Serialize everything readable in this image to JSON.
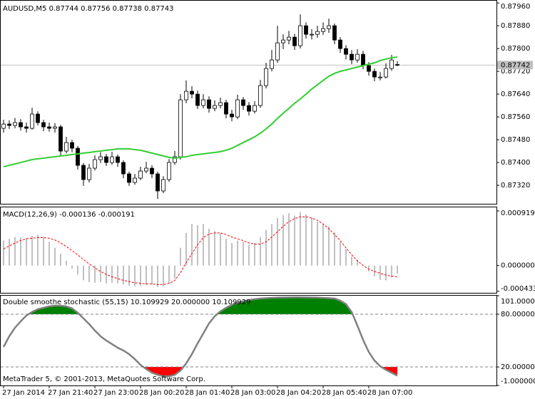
{
  "chart_data": [
    {
      "type": "candlestick",
      "title": "AUDUSD,M5  0.87744 0.87756 0.87738 0.87743",
      "categories": [
        "27 Jan 2014",
        null,
        null,
        null,
        null,
        null,
        null,
        null,
        "27 Jan 21:40",
        null,
        null,
        null,
        null,
        null,
        null,
        null,
        "27 Jan 23:00",
        null,
        null,
        null,
        null,
        null,
        null,
        null,
        "28 Jan 00:20",
        null,
        null,
        null,
        null,
        null,
        null,
        null,
        "28 Jan 01:40",
        null,
        null,
        null,
        null,
        null,
        null,
        null,
        "28 Jan 03:00",
        null,
        null,
        null,
        null,
        null,
        null,
        null,
        "28 Jan 04:20",
        null,
        null,
        null,
        null,
        null,
        null,
        null,
        "28 Jan 05:40",
        null,
        null,
        null,
        null,
        null,
        null,
        null,
        "28 Jan 07:00",
        null,
        null,
        null,
        null,
        null
      ],
      "open": [
        0.8752,
        0.87535,
        0.8753,
        0.8754,
        0.87525,
        0.8752,
        0.8757,
        0.8754,
        0.87525,
        0.8752,
        0.87525,
        0.8744,
        0.8747,
        0.8745,
        0.8739,
        0.8734,
        0.8738,
        0.8741,
        0.8742,
        0.874,
        0.8742,
        0.874,
        0.8736,
        0.8733,
        0.87345,
        0.8737,
        0.8738,
        0.8736,
        0.873,
        0.8734,
        0.874,
        0.8742,
        0.8762,
        0.8765,
        0.8764,
        0.876,
        0.8762,
        0.8759,
        0.876,
        0.8761,
        0.8757,
        0.8756,
        0.8762,
        0.876,
        0.8758,
        0.876,
        0.8767,
        0.8773,
        0.8776,
        0.8782,
        0.8783,
        0.8784,
        0.8781,
        0.8788,
        0.8785,
        0.8785,
        0.8786,
        0.8787,
        0.8788,
        0.8783,
        0.878,
        0.8778,
        0.8776,
        0.8778,
        0.8774,
        0.8772,
        0.877,
        0.877,
        0.8773,
        0.87744
      ],
      "high": [
        0.8755,
        0.87548,
        0.87556,
        0.87552,
        0.8754,
        0.87592,
        0.8758,
        0.8755,
        0.8754,
        0.87538,
        0.87532,
        0.8749,
        0.8748,
        0.87458,
        0.87398,
        0.87395,
        0.87425,
        0.87436,
        0.8743,
        0.87438,
        0.87428,
        0.87408,
        0.87368,
        0.8736,
        0.87385,
        0.87402,
        0.8739,
        0.87368,
        0.87352,
        0.87412,
        0.8744,
        0.8764,
        0.87688,
        0.87668,
        0.87652,
        0.8764,
        0.87632,
        0.87618,
        0.87628,
        0.8762,
        0.87585,
        0.87638,
        0.8763,
        0.87612,
        0.87615,
        0.8769,
        0.8775,
        0.87795,
        0.8788,
        0.8785,
        0.87862,
        0.87852,
        0.8792,
        0.87892,
        0.87868,
        0.8788,
        0.87892,
        0.87905,
        0.87888,
        0.8784,
        0.87812,
        0.87795,
        0.87798,
        0.87792,
        0.87752,
        0.8773,
        0.87718,
        0.87748,
        0.87778,
        0.87756
      ],
      "low": [
        0.87505,
        0.87518,
        0.8752,
        0.87512,
        0.87505,
        0.87515,
        0.8753,
        0.8751,
        0.87508,
        0.87505,
        0.87425,
        0.87432,
        0.87436,
        0.87375,
        0.87318,
        0.8733,
        0.87372,
        0.87398,
        0.87388,
        0.87392,
        0.87385,
        0.87345,
        0.87318,
        0.87322,
        0.87338,
        0.87362,
        0.87345,
        0.87272,
        0.87292,
        0.87332,
        0.87392,
        0.8741,
        0.87608,
        0.87625,
        0.87588,
        0.8759,
        0.87575,
        0.8758,
        0.8759,
        0.87555,
        0.87545,
        0.87552,
        0.87585,
        0.87565,
        0.87572,
        0.87592,
        0.8766,
        0.8772,
        0.8775,
        0.87798,
        0.87815,
        0.87795,
        0.878,
        0.87835,
        0.87832,
        0.87838,
        0.87848,
        0.87855,
        0.87815,
        0.87785,
        0.87762,
        0.87745,
        0.8775,
        0.87728,
        0.87705,
        0.87685,
        0.87688,
        0.87695,
        0.87722,
        0.87738
      ],
      "close": [
        0.87535,
        0.8753,
        0.8754,
        0.87525,
        0.8752,
        0.8757,
        0.8754,
        0.87525,
        0.8752,
        0.87525,
        0.8744,
        0.8747,
        0.8745,
        0.8739,
        0.8734,
        0.8738,
        0.8741,
        0.8742,
        0.874,
        0.8742,
        0.874,
        0.8736,
        0.8733,
        0.87345,
        0.8737,
        0.8738,
        0.8736,
        0.873,
        0.8734,
        0.874,
        0.8742,
        0.8762,
        0.8765,
        0.8764,
        0.876,
        0.8762,
        0.8759,
        0.876,
        0.8761,
        0.8757,
        0.8756,
        0.8762,
        0.876,
        0.8758,
        0.876,
        0.8767,
        0.8773,
        0.8776,
        0.8782,
        0.8783,
        0.8784,
        0.8781,
        0.8788,
        0.8785,
        0.8785,
        0.8786,
        0.8787,
        0.8788,
        0.8783,
        0.878,
        0.8778,
        0.8776,
        0.8778,
        0.8774,
        0.8772,
        0.877,
        0.877,
        0.8773,
        0.8776,
        0.87743
      ],
      "ma": {
        "color": "#32cd32",
        "values": [
          0.87385,
          0.8739,
          0.87395,
          0.874,
          0.87405,
          0.8741,
          0.87413,
          0.87415,
          0.87418,
          0.8742,
          0.87423,
          0.87425,
          0.87428,
          0.8743,
          0.87433,
          0.87435,
          0.87438,
          0.8744,
          0.87443,
          0.87445,
          0.87448,
          0.87448,
          0.87448,
          0.87445,
          0.87443,
          0.87438,
          0.87433,
          0.87428,
          0.87423,
          0.87418,
          0.87415,
          0.87418,
          0.8742,
          0.87425,
          0.87428,
          0.8743,
          0.87433,
          0.87435,
          0.87438,
          0.87443,
          0.8745,
          0.8746,
          0.8747,
          0.8748,
          0.8749,
          0.87503,
          0.87518,
          0.87535,
          0.87555,
          0.87573,
          0.8759,
          0.87608,
          0.87623,
          0.8764,
          0.87658,
          0.87673,
          0.87688,
          0.87703,
          0.87713,
          0.8772,
          0.87725,
          0.8773,
          0.87735,
          0.8774,
          0.87745,
          0.8775,
          0.87758,
          0.87763,
          0.87768,
          0.8777
        ]
      },
      "bid": 0.87742,
      "bid_color": "#c0c0c0",
      "up_color": "#ffffff",
      "down_color": "#000000",
      "ylim": [
        0.87255,
        0.87968
      ],
      "yticks": [
        {
          "value": 0.8796,
          "label": "0.87960"
        },
        {
          "value": 0.8788,
          "label": "0.87880"
        },
        {
          "value": 0.878,
          "label": "0.87800"
        },
        {
          "value": 0.8772,
          "label": "0.87720"
        },
        {
          "value": 0.8764,
          "label": "0.87640"
        },
        {
          "value": 0.8756,
          "label": "0.87560"
        },
        {
          "value": 0.8748,
          "label": "0.87480"
        },
        {
          "value": 0.874,
          "label": "0.87400"
        },
        {
          "value": 0.8732,
          "label": "0.87320"
        }
      ]
    },
    {
      "type": "macd",
      "title": "MACD(12,26,9) -0.000136 -0.000191",
      "histogram": {
        "color": "#c0c0c0",
        "values": [
          0.00042,
          0.00045,
          0.00048,
          0.00047,
          0.00046,
          0.0005,
          0.00052,
          0.00048,
          0.0004,
          0.0003,
          0.0002,
          8e-05,
          -5e-05,
          -0.00015,
          -0.00025,
          -0.00028,
          -0.00029,
          -0.00028,
          -0.0003,
          -0.00029,
          -0.0003,
          -0.00032,
          -0.00034,
          -0.00035,
          -0.00034,
          -0.00033,
          -0.00032,
          -0.00036,
          -0.00035,
          -0.0003,
          -0.00022,
          0.0003,
          0.00055,
          0.0007,
          0.00068,
          0.0007,
          0.00062,
          0.00058,
          0.00055,
          0.00045,
          0.00038,
          0.00042,
          0.0004,
          0.00035,
          0.00038,
          0.00048,
          0.0006,
          0.0007,
          0.0008,
          0.00085,
          0.00088,
          0.00084,
          0.0009,
          0.00086,
          0.0008,
          0.00074,
          0.0007,
          0.00066,
          0.00056,
          0.0004,
          0.00028,
          0.00015,
          0.0001,
          0,
          -0.0001,
          -0.00018,
          -0.00024,
          -0.00025,
          -0.0002,
          -0.000136
        ]
      },
      "signal": {
        "color": "#ff0000",
        "values": [
          0.00028,
          0.00033,
          0.00038,
          0.00042,
          0.00045,
          0.00046,
          0.00047,
          0.00047,
          0.00046,
          0.00043,
          0.00038,
          0.00032,
          0.00025,
          0.00018,
          0.0001,
          3e-05,
          -4e-05,
          -0.0001,
          -0.00015,
          -0.00019,
          -0.00022,
          -0.00025,
          -0.00027,
          -0.00029,
          -0.0003,
          -0.00031,
          -0.00031,
          -0.00032,
          -0.00032,
          -0.0003,
          -0.00025,
          -0.00012,
          5e-05,
          0.0002,
          0.00035,
          0.00047,
          0.00053,
          0.00055,
          0.00055,
          0.00052,
          0.00048,
          0.00045,
          0.00042,
          0.00038,
          0.00036,
          0.00036,
          0.0004,
          0.00048,
          0.00057,
          0.00066,
          0.00074,
          0.00079,
          0.00082,
          0.00082,
          0.0008,
          0.00076,
          0.0007,
          0.00062,
          0.00052,
          0.00042,
          0.0003,
          0.00018,
          8e-05,
          0,
          -6e-05,
          -0.0001,
          -0.00013,
          -0.00016,
          -0.00018,
          -0.000191
        ]
      },
      "ylim": [
        -0.00046,
        0.00098
      ],
      "yticks": [
        0.000919,
        {
          "value": 0,
          "label": "0.000000"
        },
        -0.000433
      ]
    },
    {
      "type": "stochastic",
      "title": "Double smoothe stochastic (55,15) 10.109929 20.000000 10.109929",
      "color": "#808080",
      "overbought_color": "#008000",
      "oversold_color": "#ff0000",
      "values": [
        42.7,
        54.9,
        64.6,
        71.9,
        78.4,
        82.5,
        85.7,
        87.3,
        88.9,
        89.7,
        89.7,
        88.9,
        86.5,
        81.6,
        75.2,
        68.7,
        61.4,
        54.9,
        50,
        46,
        41.9,
        38.7,
        34.6,
        28.9,
        22.4,
        17.6,
        13.5,
        11.1,
        9.5,
        9.5,
        11.1,
        15.9,
        24.1,
        34.6,
        46.8,
        58.1,
        69.5,
        77.6,
        83.3,
        87.3,
        90.6,
        93,
        94.6,
        96.2,
        97,
        97.8,
        98.2,
        98.6,
        98.9,
        99,
        99.1,
        99.2,
        99.2,
        99.1,
        99,
        98.9,
        98.6,
        98.2,
        97.8,
        95.4,
        91.4,
        82.5,
        67,
        50.8,
        37,
        27.3,
        20.8,
        16.8,
        13.5,
        10.109929
      ],
      "levels": [
        80,
        20
      ],
      "ylim": [
        -1,
        101
      ],
      "yticks": [
        {
          "value": 101,
          "label": "101.000000"
        },
        {
          "value": 80,
          "label": "80.000000"
        },
        {
          "value": 20,
          "label": "20.000000"
        },
        {
          "value": -1,
          "label": "-1.000000"
        }
      ]
    }
  ],
  "footer": "MetaTrader 5, © 2001-2013, MetaQuotes Software Corp."
}
